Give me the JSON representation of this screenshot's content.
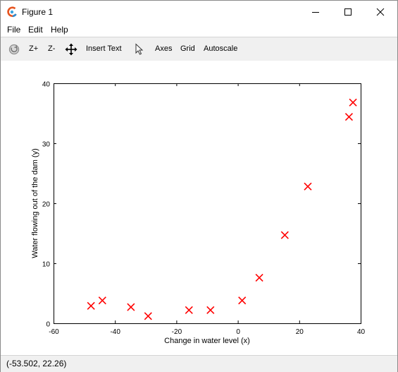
{
  "window": {
    "title": "Figure 1",
    "controls": {
      "minimize": "minimize",
      "maximize": "maximize",
      "close": "close"
    }
  },
  "menu": {
    "items": [
      {
        "label": "File"
      },
      {
        "label": "Edit"
      },
      {
        "label": "Help"
      }
    ]
  },
  "toolbar": {
    "rotate_icon": "rotate-icon",
    "zoom_in_label": "Z+",
    "zoom_out_label": "Z-",
    "pan_icon": "pan-icon",
    "insert_text_label": "Insert Text",
    "select_icon": "pointer-icon",
    "axes_label": "Axes",
    "grid_label": "Grid",
    "autoscale_label": "Autoscale"
  },
  "status": {
    "coordinates": "(-53.502, 22.26)"
  },
  "chart_data": {
    "type": "scatter",
    "xlabel": "Change in water level (x)",
    "ylabel": "Water flowing out of the dam (y)",
    "xlim": [
      -60,
      40
    ],
    "ylim": [
      0,
      40
    ],
    "xticks": [
      "-60",
      "-40",
      "-20",
      "0",
      "20",
      "40"
    ],
    "yticks": [
      "0",
      "10",
      "20",
      "30",
      "40"
    ],
    "grid": false,
    "marker": "x",
    "marker_color": "#ff0000",
    "points": [
      {
        "x": -47.8,
        "y": 2.9
      },
      {
        "x": -44.1,
        "y": 3.8
      },
      {
        "x": -34.8,
        "y": 2.7
      },
      {
        "x": -29.2,
        "y": 1.2
      },
      {
        "x": -15.9,
        "y": 2.2
      },
      {
        "x": -8.9,
        "y": 2.2
      },
      {
        "x": 1.4,
        "y": 3.8
      },
      {
        "x": 7.0,
        "y": 7.6
      },
      {
        "x": 15.3,
        "y": 14.7
      },
      {
        "x": 22.8,
        "y": 22.8
      },
      {
        "x": 36.2,
        "y": 34.4
      },
      {
        "x": 37.5,
        "y": 36.8
      }
    ]
  }
}
